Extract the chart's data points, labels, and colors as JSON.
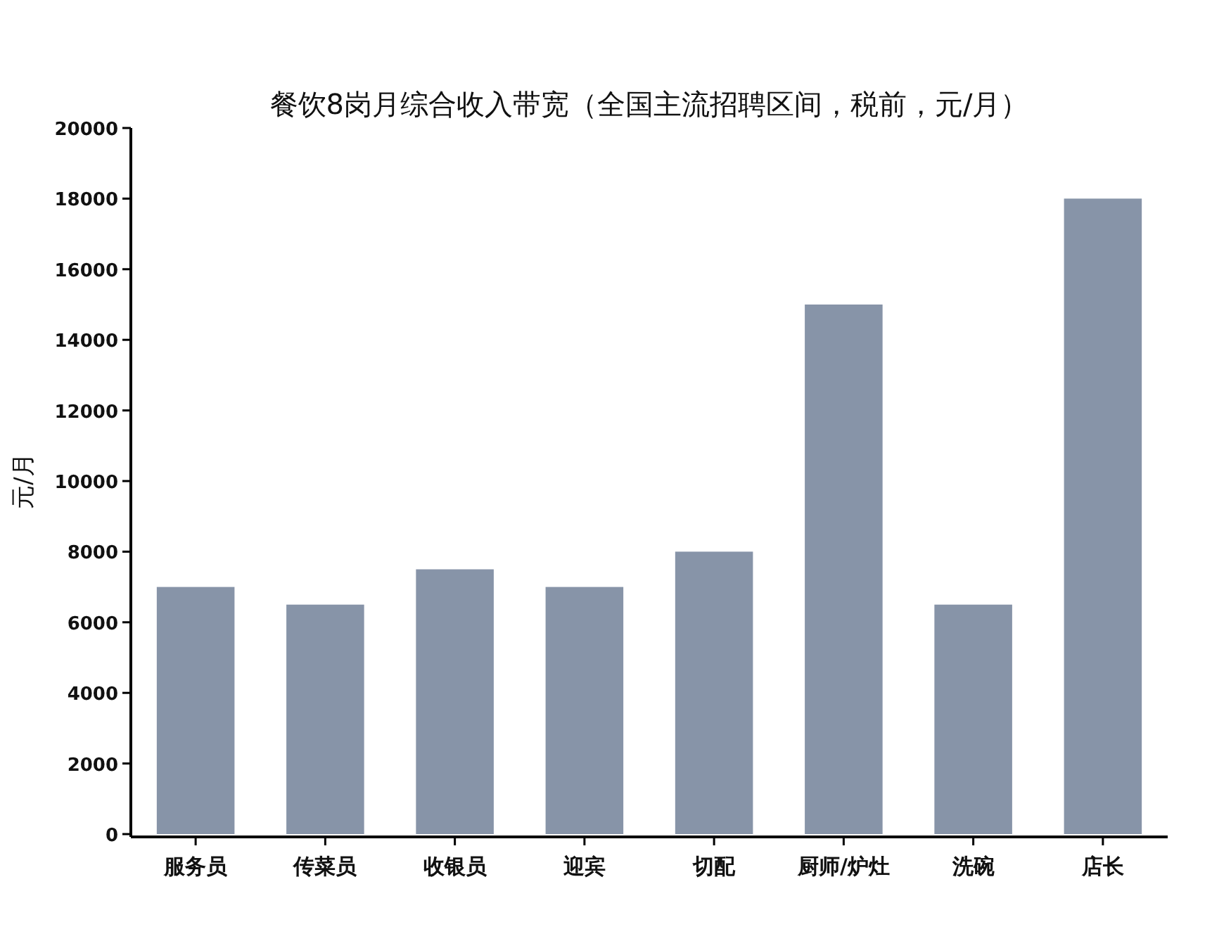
{
  "chart_data": {
    "type": "bar",
    "title": "餐饮8岗月综合收入带宽（全国主流招聘区间，税前，元/月）",
    "ylabel": "元/月",
    "categories": [
      "服务员",
      "传菜员",
      "收银员",
      "迎宾",
      "切配",
      "厨师/炉灶",
      "洗碗",
      "店长"
    ],
    "values": [
      7000,
      6500,
      7500,
      7000,
      8000,
      15000,
      6500,
      18000
    ],
    "color": "#8794a8",
    "ylim": [
      0,
      20000
    ],
    "yticks": [
      0,
      2000,
      4000,
      6000,
      8000,
      10000,
      12000,
      14000,
      16000,
      18000,
      20000
    ],
    "grid": false
  }
}
